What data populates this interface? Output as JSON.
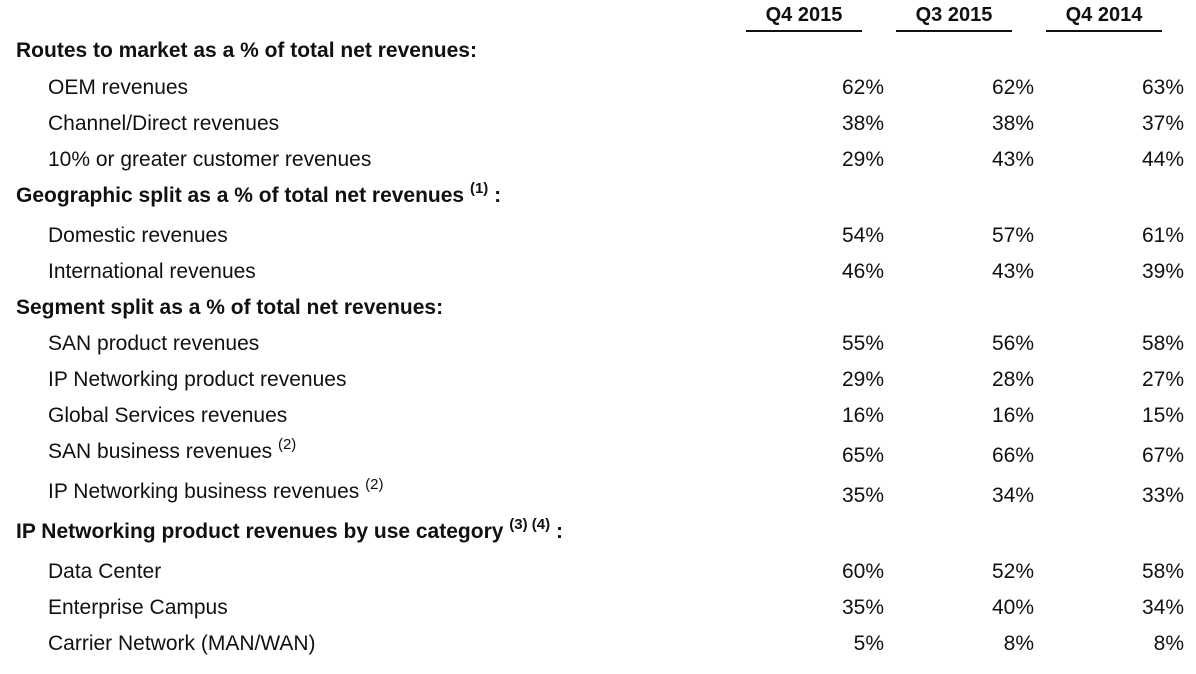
{
  "columns": [
    "Q4 2015",
    "Q3 2015",
    "Q4 2014"
  ],
  "sections": [
    {
      "title": "Routes to market as a % of total net revenues:",
      "note": "",
      "rows": [
        {
          "label": "OEM revenues",
          "note": "",
          "values": [
            "62%",
            "62%",
            "63%"
          ]
        },
        {
          "label": "Channel/Direct revenues",
          "note": "",
          "values": [
            "38%",
            "38%",
            "37%"
          ]
        },
        {
          "label": "10% or greater customer revenues",
          "note": "",
          "values": [
            "29%",
            "43%",
            "44%"
          ]
        }
      ]
    },
    {
      "title": "Geographic split as a % of total net revenues",
      "note": "(1)",
      "rows": [
        {
          "label": "Domestic revenues",
          "note": "",
          "values": [
            "54%",
            "57%",
            "61%"
          ]
        },
        {
          "label": "International revenues",
          "note": "",
          "values": [
            "46%",
            "43%",
            "39%"
          ]
        }
      ]
    },
    {
      "title": "Segment split as a % of total net revenues:",
      "note": "",
      "rows": [
        {
          "label": "SAN product revenues",
          "note": "",
          "values": [
            "55%",
            "56%",
            "58%"
          ]
        },
        {
          "label": "IP Networking product revenues",
          "note": "",
          "values": [
            "29%",
            "28%",
            "27%"
          ]
        },
        {
          "label": "Global Services revenues",
          "note": "",
          "values": [
            "16%",
            "16%",
            "15%"
          ]
        },
        {
          "label": "SAN business revenues",
          "note": "(2)",
          "values": [
            "65%",
            "66%",
            "67%"
          ]
        },
        {
          "label": "IP Networking business revenues",
          "note": "(2)",
          "values": [
            "35%",
            "34%",
            "33%"
          ]
        }
      ]
    },
    {
      "title": "IP Networking product revenues by use category",
      "note": "(3) (4)",
      "rows": [
        {
          "label": "Data Center",
          "note": "",
          "values": [
            "60%",
            "52%",
            "58%"
          ]
        },
        {
          "label": "Enterprise Campus",
          "note": "",
          "values": [
            "35%",
            "40%",
            "34%"
          ]
        },
        {
          "label": "Carrier Network (MAN/WAN)",
          "note": "",
          "values": [
            "5%",
            "8%",
            "8%"
          ]
        }
      ]
    }
  ]
}
